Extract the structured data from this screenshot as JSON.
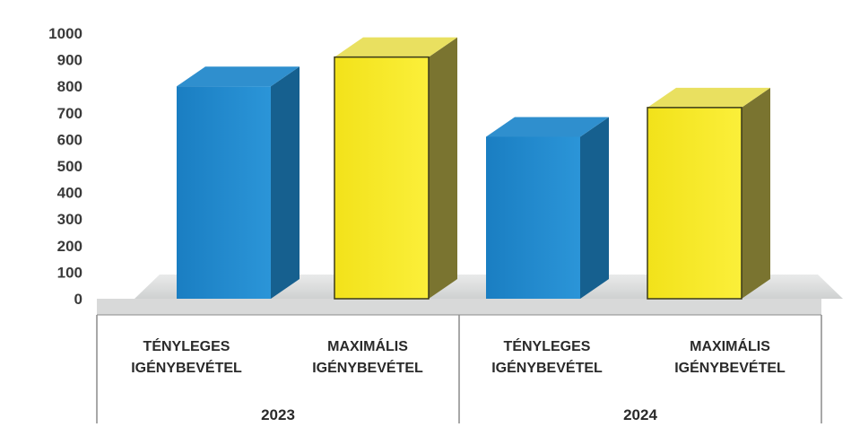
{
  "chart_data": {
    "type": "bar",
    "title": "",
    "xlabel": "",
    "ylabel": "",
    "ylim": [
      0,
      1000
    ],
    "yticks": [
      0,
      100,
      200,
      300,
      400,
      500,
      600,
      700,
      800,
      900,
      1000
    ],
    "groups": [
      {
        "label": "2023",
        "bars": [
          {
            "category": "TÉNYLEGES IGÉNYBEVÉTEL",
            "category_lines": [
              "TÉNYLEGES",
              "IGÉNYBEVÉTEL"
            ],
            "value": 800,
            "color": "#1f86c9"
          },
          {
            "category": "MAXIMÁLIS IGÉNYBEVÉTEL",
            "category_lines": [
              "MAXIMÁLIS",
              "IGÉNYBEVÉTEL"
            ],
            "value": 910,
            "color": "#f6e81e"
          }
        ]
      },
      {
        "label": "2024",
        "bars": [
          {
            "category": "TÉNYLEGES IGÉNYBEVÉTEL",
            "category_lines": [
              "TÉNYLEGES",
              "IGÉNYBEVÉTEL"
            ],
            "value": 610,
            "color": "#1f86c9"
          },
          {
            "category": "MAXIMÁLIS IGÉNYBEVÉTEL",
            "category_lines": [
              "MAXIMÁLIS",
              "IGÉNYBEVÉTEL"
            ],
            "value": 720,
            "color": "#f6e81e"
          }
        ]
      }
    ],
    "grid": false,
    "legend": "none"
  }
}
